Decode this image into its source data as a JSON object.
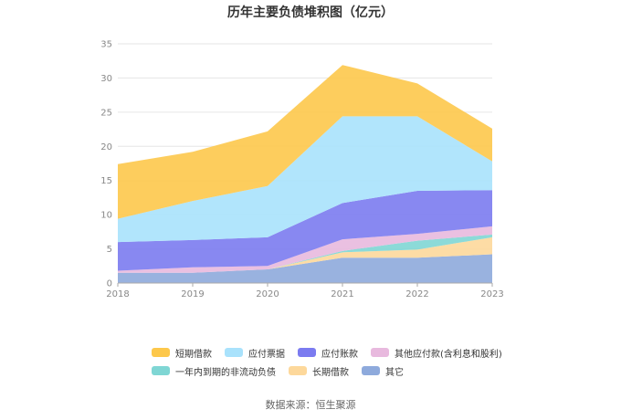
{
  "chart_data": {
    "type": "area",
    "title": "历年主要负债堆积图（亿元）",
    "xlabel": "",
    "ylabel": "",
    "x": [
      "2018",
      "2019",
      "2020",
      "2021",
      "2022",
      "2023"
    ],
    "yticks": [
      "0",
      "5",
      "10",
      "15",
      "20",
      "25",
      "30",
      "35"
    ],
    "ylim": [
      0,
      35
    ],
    "stacked": true,
    "grid": true,
    "legend_position": "bottom",
    "series": [
      {
        "name": "其它",
        "color": "#8eaadc",
        "values": [
          1.5,
          1.5,
          2.0,
          3.7,
          3.7,
          4.2
        ]
      },
      {
        "name": "长期借款",
        "color": "#fdd89b",
        "values": [
          0.0,
          0.0,
          0.0,
          0.8,
          1.2,
          2.5
        ]
      },
      {
        "name": "一年内到期的非流动负债",
        "color": "#7fd6d4",
        "values": [
          0.0,
          0.0,
          0.0,
          0.2,
          1.3,
          0.4
        ]
      },
      {
        "name": "其他应付款(含利息和股利)",
        "color": "#e8b9de",
        "values": [
          0.3,
          0.8,
          0.5,
          1.7,
          1.0,
          1.2
        ]
      },
      {
        "name": "应付账款",
        "color": "#7b7bf0",
        "values": [
          4.2,
          4.0,
          4.2,
          5.3,
          6.3,
          5.3
        ]
      },
      {
        "name": "应付票据",
        "color": "#a9e2fc",
        "values": [
          3.4,
          5.7,
          7.5,
          12.7,
          10.9,
          4.2
        ]
      },
      {
        "name": "短期借款",
        "color": "#fdc84b",
        "values": [
          8.0,
          7.2,
          8.0,
          7.5,
          4.8,
          4.8
        ]
      }
    ],
    "legend_order": [
      "短期借款",
      "应付票据",
      "应付账款",
      "其他应付款(含利息和股利)",
      "一年内到期的非流动负债",
      "长期借款",
      "其它"
    ]
  },
  "source": "数据来源：恒生聚源"
}
